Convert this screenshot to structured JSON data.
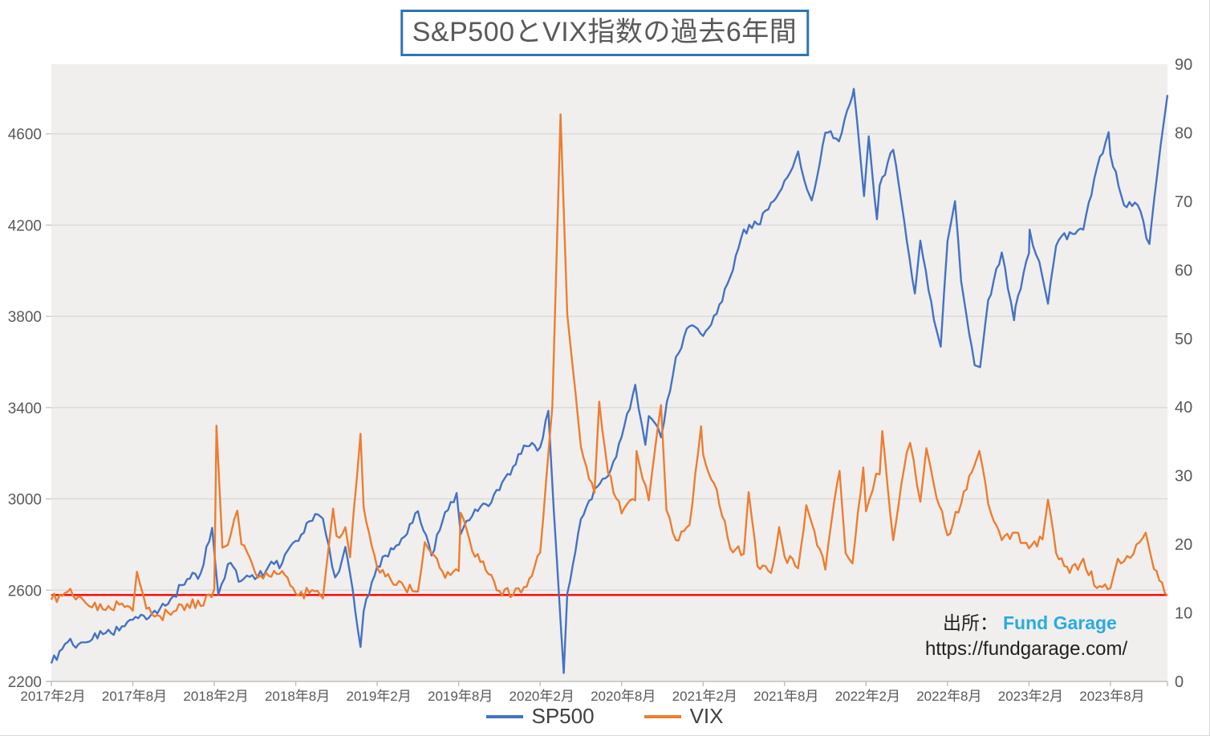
{
  "title": {
    "text": "S&P500とVIX指数の過去6年間"
  },
  "source": {
    "label": "出所：",
    "brand": "Fund Garage",
    "brand_color": "#29ABE2",
    "url": "https://fundgarage.com/"
  },
  "legend": {
    "items": [
      {
        "label": "SP500",
        "color": "#4472C4"
      },
      {
        "label": "VIX",
        "color": "#ED7D31"
      }
    ]
  },
  "chart_data": {
    "type": "line",
    "title": "S&P500とVIX指数の過去6年間",
    "grid": "horizontal gridlines at left-axis ticks",
    "legend_position": "bottom-center",
    "x_axis": {
      "unit": "months since 2017-02",
      "range": [
        0,
        82.2
      ],
      "tick_positions": [
        0,
        6,
        12,
        18,
        24,
        30,
        36,
        42,
        48,
        54,
        60,
        66,
        72,
        78
      ],
      "tick_labels": [
        "2017年2月",
        "2017年8月",
        "2018年2月",
        "2018年8月",
        "2019年2月",
        "2019年8月",
        "2020年2月",
        "2020年8月",
        "2021年2月",
        "2021年8月",
        "2022年2月",
        "2022年8月",
        "2023年2月",
        "2023年8月"
      ]
    },
    "y_axis_left": {
      "label": "SP500",
      "range": [
        2200,
        4905
      ],
      "ticks": [
        2200,
        2600,
        3000,
        3400,
        3800,
        4200,
        4600
      ]
    },
    "y_axis_right": {
      "label": "VIX",
      "range": [
        0,
        90
      ],
      "ticks": [
        0,
        10,
        20,
        30,
        40,
        50,
        60,
        70,
        80,
        90
      ]
    },
    "reference_line": {
      "axis": "right",
      "value": 12.6,
      "color": "#FF0000",
      "equivalent_left_value": 2580
    },
    "series": [
      {
        "name": "SP500",
        "axis": "left",
        "color": "#4472C4",
        "points": [
          [
            0,
            2279
          ],
          [
            1,
            2364
          ],
          [
            2,
            2363
          ],
          [
            3,
            2384
          ],
          [
            4,
            2412
          ],
          [
            5,
            2423
          ],
          [
            6,
            2470
          ],
          [
            7,
            2472
          ],
          [
            8,
            2519
          ],
          [
            9,
            2575
          ],
          [
            10,
            2648
          ],
          [
            11,
            2674
          ],
          [
            11.84,
            2873
          ],
          [
            12.3,
            2581
          ],
          [
            13,
            2714
          ],
          [
            14,
            2641
          ],
          [
            15,
            2648
          ],
          [
            16,
            2705
          ],
          [
            17,
            2718
          ],
          [
            18,
            2816
          ],
          [
            19,
            2902
          ],
          [
            19.65,
            2931
          ],
          [
            20,
            2914
          ],
          [
            20.9,
            2656
          ],
          [
            21.2,
            2682
          ],
          [
            21.65,
            2790
          ],
          [
            22.2,
            2600
          ],
          [
            22.77,
            2351
          ],
          [
            23,
            2507
          ],
          [
            24,
            2704
          ],
          [
            25,
            2784
          ],
          [
            26,
            2834
          ],
          [
            27,
            2946
          ],
          [
            28,
            2752
          ],
          [
            29,
            2942
          ],
          [
            29.85,
            3026
          ],
          [
            30.15,
            2845
          ],
          [
            31,
            2926
          ],
          [
            32,
            2977
          ],
          [
            33,
            3038
          ],
          [
            34,
            3141
          ],
          [
            35,
            3231
          ],
          [
            36,
            3226
          ],
          [
            36.6,
            3386
          ],
          [
            37,
            2954
          ],
          [
            37.74,
            2237
          ],
          [
            38,
            2585
          ],
          [
            39,
            2912
          ],
          [
            40,
            3044
          ],
          [
            41,
            3100
          ],
          [
            42,
            3271
          ],
          [
            43,
            3500
          ],
          [
            43.75,
            3237
          ],
          [
            44,
            3363
          ],
          [
            44.9,
            3270
          ],
          [
            46,
            3622
          ],
          [
            47,
            3756
          ],
          [
            48,
            3714
          ],
          [
            49,
            3811
          ],
          [
            50,
            3973
          ],
          [
            51,
            4181
          ],
          [
            52,
            4204
          ],
          [
            53,
            4298
          ],
          [
            54,
            4395
          ],
          [
            55,
            4523
          ],
          [
            55.65,
            4357
          ],
          [
            56,
            4308
          ],
          [
            57,
            4605
          ],
          [
            58,
            4567
          ],
          [
            59,
            4766
          ],
          [
            59.1,
            4797
          ],
          [
            59.85,
            4327
          ],
          [
            60.2,
            4589
          ],
          [
            60.8,
            4225
          ],
          [
            61,
            4374
          ],
          [
            62,
            4530
          ],
          [
            63,
            4132
          ],
          [
            63.6,
            3900
          ],
          [
            64,
            4132
          ],
          [
            65,
            3785
          ],
          [
            65.5,
            3667
          ],
          [
            66,
            4130
          ],
          [
            66.55,
            4305
          ],
          [
            67,
            3955
          ],
          [
            68,
            3586
          ],
          [
            68.4,
            3577
          ],
          [
            69,
            3872
          ],
          [
            70,
            4080
          ],
          [
            70.9,
            3783
          ],
          [
            71,
            3840
          ],
          [
            72,
            4077
          ],
          [
            72.05,
            4180
          ],
          [
            73,
            3970
          ],
          [
            73.4,
            3855
          ],
          [
            74,
            4109
          ],
          [
            75,
            4169
          ],
          [
            76,
            4180
          ],
          [
            77,
            4450
          ],
          [
            77.87,
            4607
          ],
          [
            78,
            4508
          ],
          [
            78.6,
            4370
          ],
          [
            79,
            4288
          ],
          [
            80,
            4288
          ],
          [
            80.87,
            4117
          ],
          [
            81,
            4194
          ],
          [
            81.7,
            4550
          ],
          [
            82.2,
            4770
          ]
        ]
      },
      {
        "name": "VIX",
        "axis": "right",
        "color": "#ED7D31",
        "points": [
          [
            0,
            11.9
          ],
          [
            1,
            12.9
          ],
          [
            2,
            12.4
          ],
          [
            3,
            10.8
          ],
          [
            4,
            10.4
          ],
          [
            5,
            11.2
          ],
          [
            6,
            10.3
          ],
          [
            6.3,
            16.0
          ],
          [
            7,
            10.6
          ],
          [
            8,
            9.5
          ],
          [
            9,
            10.2
          ],
          [
            10,
            11.3
          ],
          [
            11,
            11.0
          ],
          [
            12,
            13.5
          ],
          [
            12.16,
            37.3
          ],
          [
            12.6,
            19.5
          ],
          [
            13,
            19.9
          ],
          [
            13.7,
            24.9
          ],
          [
            14,
            20.0
          ],
          [
            15,
            15.9
          ],
          [
            16,
            15.4
          ],
          [
            17,
            16.1
          ],
          [
            18,
            12.8
          ],
          [
            19,
            12.9
          ],
          [
            20,
            12.1
          ],
          [
            20.75,
            25.2
          ],
          [
            21,
            21.2
          ],
          [
            21.65,
            22.5
          ],
          [
            22,
            18.1
          ],
          [
            22.77,
            36.1
          ],
          [
            23,
            25.4
          ],
          [
            24,
            16.6
          ],
          [
            25,
            14.8
          ],
          [
            26,
            13.7
          ],
          [
            27,
            13.1
          ],
          [
            27.5,
            20.3
          ],
          [
            28,
            18.7
          ],
          [
            29,
            15.1
          ],
          [
            30,
            16.1
          ],
          [
            30.15,
            24.6
          ],
          [
            31,
            19.0
          ],
          [
            32,
            16.2
          ],
          [
            33,
            13.2
          ],
          [
            34,
            12.6
          ],
          [
            35,
            13.8
          ],
          [
            36,
            18.8
          ],
          [
            36.9,
            40.1
          ],
          [
            37.5,
            82.7
          ],
          [
            38,
            53.5
          ],
          [
            39,
            34.2
          ],
          [
            40,
            27.5
          ],
          [
            40.35,
            40.8
          ],
          [
            41,
            30.4
          ],
          [
            42,
            24.5
          ],
          [
            43,
            26.4
          ],
          [
            43.1,
            33.6
          ],
          [
            44,
            26.4
          ],
          [
            44.9,
            40.3
          ],
          [
            45.3,
            25.0
          ],
          [
            46,
            20.6
          ],
          [
            47,
            22.8
          ],
          [
            47.85,
            37.2
          ],
          [
            48,
            33.1
          ],
          [
            48.8,
            28.9
          ],
          [
            49,
            28.0
          ],
          [
            50,
            19.4
          ],
          [
            51,
            18.6
          ],
          [
            51.35,
            27.6
          ],
          [
            52,
            16.8
          ],
          [
            53,
            15.8
          ],
          [
            53.6,
            22.5
          ],
          [
            54,
            18.2
          ],
          [
            55,
            16.5
          ],
          [
            55.6,
            25.7
          ],
          [
            56,
            23.1
          ],
          [
            57,
            16.3
          ],
          [
            57.85,
            28.6
          ],
          [
            58.05,
            30.7
          ],
          [
            58.5,
            18.7
          ],
          [
            59,
            17.2
          ],
          [
            59.8,
            31.2
          ],
          [
            60,
            24.8
          ],
          [
            60.75,
            30.3
          ],
          [
            61,
            30.2
          ],
          [
            61.2,
            36.5
          ],
          [
            62,
            20.6
          ],
          [
            63,
            33.4
          ],
          [
            63.25,
            34.8
          ],
          [
            64,
            26.2
          ],
          [
            64.45,
            34.0
          ],
          [
            65,
            28.7
          ],
          [
            66,
            21.3
          ],
          [
            67,
            25.9
          ],
          [
            68,
            31.6
          ],
          [
            68.35,
            33.6
          ],
          [
            69,
            25.9
          ],
          [
            70,
            20.6
          ],
          [
            71,
            21.7
          ],
          [
            72,
            19.4
          ],
          [
            73,
            20.7
          ],
          [
            73.4,
            26.5
          ],
          [
            74,
            18.7
          ],
          [
            75,
            15.8
          ],
          [
            76,
            17.9
          ],
          [
            77,
            13.6
          ],
          [
            78,
            13.6
          ],
          [
            78.55,
            17.9
          ],
          [
            79,
            17.5
          ],
          [
            80.6,
            21.7
          ],
          [
            81,
            18.1
          ],
          [
            82,
            12.9
          ],
          [
            82.2,
            12.5
          ]
        ]
      }
    ],
    "style_colors": {
      "plot_background": "#F0EFED",
      "gridline": "#D9D9D9",
      "axis_line": "#BFBFBF",
      "axis_text": "#595959"
    }
  }
}
